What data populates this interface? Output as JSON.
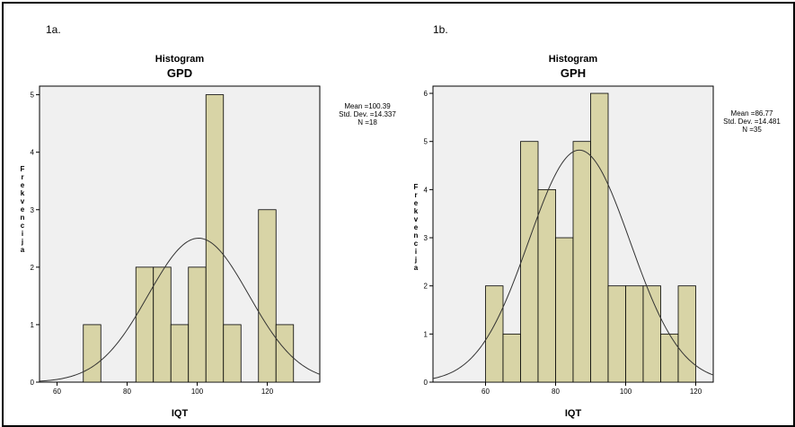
{
  "panels": [
    {
      "panel_label": "1a.",
      "stats": {
        "mean": "Mean =100.39",
        "sd": "Std. Dev. =14.337",
        "n": "N =18"
      }
    },
    {
      "panel_label": "1b.",
      "stats": {
        "mean": "Mean =86.77",
        "sd": "Std. Dev. =14.481",
        "n": "N =35"
      }
    }
  ],
  "colors": {
    "bar_fill": "#d8d4a6",
    "plot_bg": "#f0f0f0",
    "curve": "#333333"
  },
  "chart_data": [
    {
      "type": "bar",
      "title": "Histogram",
      "subtitle": "GPD",
      "xlabel": "IQT",
      "ylabel": "Frekvencija",
      "bin_width": 5,
      "bins": [
        {
          "start": 67.5,
          "count": 1
        },
        {
          "start": 82.5,
          "count": 2
        },
        {
          "start": 87.5,
          "count": 2
        },
        {
          "start": 92.5,
          "count": 1
        },
        {
          "start": 97.5,
          "count": 2
        },
        {
          "start": 102.5,
          "count": 5
        },
        {
          "start": 107.5,
          "count": 1
        },
        {
          "start": 117.5,
          "count": 3
        },
        {
          "start": 122.5,
          "count": 1
        }
      ],
      "xlim": [
        55,
        135
      ],
      "ylim": [
        0,
        5.15
      ],
      "xticks": [
        60,
        80,
        100,
        120
      ],
      "yticks": [
        0,
        1,
        2,
        3,
        4,
        5
      ],
      "normal_curve": {
        "mean": 100.39,
        "sd": 14.337,
        "n": 18
      },
      "grid": false
    },
    {
      "type": "bar",
      "title": "Histogram",
      "subtitle": "GPH",
      "xlabel": "IQT",
      "ylabel": "Frekvencija",
      "bin_width": 5,
      "bins": [
        {
          "start": 60,
          "count": 2
        },
        {
          "start": 65,
          "count": 1
        },
        {
          "start": 70,
          "count": 5
        },
        {
          "start": 75,
          "count": 4
        },
        {
          "start": 80,
          "count": 3
        },
        {
          "start": 85,
          "count": 5
        },
        {
          "start": 90,
          "count": 6
        },
        {
          "start": 95,
          "count": 2
        },
        {
          "start": 100,
          "count": 2
        },
        {
          "start": 105,
          "count": 2
        },
        {
          "start": 110,
          "count": 1
        },
        {
          "start": 115,
          "count": 2
        }
      ],
      "xlim": [
        45,
        125
      ],
      "ylim": [
        0,
        6.15
      ],
      "xticks": [
        60,
        80,
        100,
        120
      ],
      "yticks": [
        0,
        1,
        2,
        3,
        4,
        5,
        6
      ],
      "normal_curve": {
        "mean": 86.77,
        "sd": 14.481,
        "n": 35
      },
      "grid": false
    }
  ]
}
